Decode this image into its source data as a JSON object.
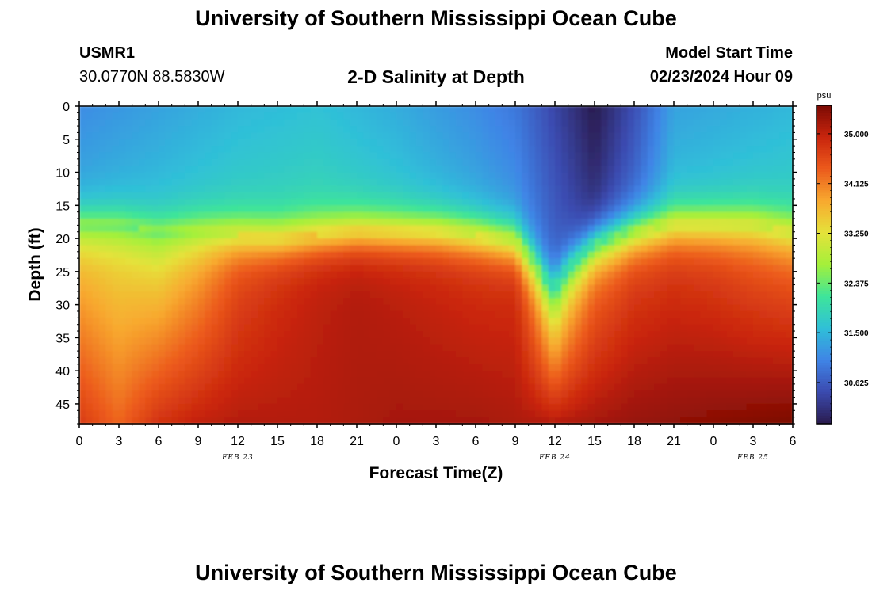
{
  "page": {
    "title": "University of Southern Mississippi Ocean Cube",
    "footer_title": "University of Southern Mississippi Ocean Cube",
    "station_id": "USMR1",
    "coordinates": "30.0770N  88.5830W",
    "subtitle": "2-D Salinity at Depth",
    "model_start_label": "Model Start Time",
    "model_start_value": "02/23/2024 Hour 09"
  },
  "chart_data": {
    "type": "heatmap",
    "title": "2-D Salinity at Depth",
    "xlabel": "Forecast Time(Z)",
    "ylabel": "Depth (ft)",
    "x_tick_labels": [
      "0",
      "3",
      "6",
      "9",
      "12",
      "15",
      "18",
      "21",
      "0",
      "3",
      "6",
      "9",
      "12",
      "15",
      "18",
      "21",
      "0",
      "3",
      "6"
    ],
    "x_hours": [
      0,
      3,
      6,
      9,
      12,
      15,
      18,
      21,
      24,
      27,
      30,
      33,
      36,
      39,
      42,
      45,
      48,
      51,
      54
    ],
    "x_range_hours": [
      0,
      54
    ],
    "date_labels": [
      {
        "text": "FEB 23",
        "hour": 12
      },
      {
        "text": "FEB 24",
        "hour": 36
      },
      {
        "text": "FEB 25",
        "hour": 51
      }
    ],
    "y_ticks": [
      0,
      5,
      10,
      15,
      20,
      25,
      30,
      35,
      40,
      45
    ],
    "y_range_ft": [
      0,
      48
    ],
    "y_inverted": true,
    "colorbar": {
      "unit": "psu",
      "ticks": [
        "35.000",
        "34.125",
        "33.250",
        "32.375",
        "31.500",
        "30.625"
      ],
      "tick_values": [
        35.0,
        34.125,
        33.25,
        32.375,
        31.5,
        30.625
      ],
      "range": [
        29.9,
        35.5
      ],
      "colors": [
        "#2a1b4e",
        "#3b4bb0",
        "#3f84e6",
        "#2fc0d8",
        "#3ee49a",
        "#a4f03a",
        "#e5e23a",
        "#f8a92f",
        "#ec5a1c",
        "#c9250d",
        "#7b0a04"
      ]
    },
    "halocline_depth_ft": [
      {
        "hour": 0,
        "depth": 18
      },
      {
        "hour": 3,
        "depth": 18
      },
      {
        "hour": 6,
        "depth": 19
      },
      {
        "hour": 9,
        "depth": 19
      },
      {
        "hour": 12,
        "depth": 19.5
      },
      {
        "hour": 15,
        "depth": 20
      },
      {
        "hour": 18,
        "depth": 19.5
      },
      {
        "hour": 21,
        "depth": 19
      },
      {
        "hour": 24,
        "depth": 19
      },
      {
        "hour": 27,
        "depth": 19
      },
      {
        "hour": 30,
        "depth": 19.5
      },
      {
        "hour": 33,
        "depth": 20.5
      },
      {
        "hour": 34.5,
        "depth": 24
      },
      {
        "hour": 35.5,
        "depth": 27
      },
      {
        "hour": 36,
        "depth": 27.5
      },
      {
        "hour": 37,
        "depth": 24.5
      },
      {
        "hour": 39,
        "depth": 21
      },
      {
        "hour": 42,
        "depth": 19
      },
      {
        "hour": 45,
        "depth": 18
      },
      {
        "hour": 48,
        "depth": 18
      },
      {
        "hour": 51,
        "depth": 18
      },
      {
        "hour": 54,
        "depth": 19
      }
    ],
    "surface_salinity_psu": [
      {
        "hour": 0,
        "value": 31.1
      },
      {
        "hour": 6,
        "value": 31.3
      },
      {
        "hour": 12,
        "value": 31.5
      },
      {
        "hour": 18,
        "value": 31.6
      },
      {
        "hour": 24,
        "value": 31.4
      },
      {
        "hour": 30,
        "value": 31.1
      },
      {
        "hour": 33,
        "value": 30.9
      },
      {
        "hour": 36,
        "value": 30.4
      },
      {
        "hour": 39,
        "value": 29.9
      },
      {
        "hour": 42,
        "value": 30.5
      },
      {
        "hour": 45,
        "value": 31.3
      },
      {
        "hour": 54,
        "value": 31.5
      }
    ],
    "mid_salinity_psu": [
      {
        "hour": 0,
        "value": 33.6
      },
      {
        "hour": 3,
        "value": 33.4
      },
      {
        "hour": 6,
        "value": 33.3
      },
      {
        "hour": 9,
        "value": 33.8
      },
      {
        "hour": 12,
        "value": 34.5
      },
      {
        "hour": 15,
        "value": 34.8
      },
      {
        "hour": 18,
        "value": 35.0
      },
      {
        "hour": 21,
        "value": 35.1
      },
      {
        "hour": 24,
        "value": 35.0
      },
      {
        "hour": 27,
        "value": 34.9
      },
      {
        "hour": 30,
        "value": 34.8
      },
      {
        "hour": 33,
        "value": 34.8
      },
      {
        "hour": 36,
        "value": 33.2
      },
      {
        "hour": 39,
        "value": 34.2
      },
      {
        "hour": 42,
        "value": 34.6
      },
      {
        "hour": 45,
        "value": 34.7
      },
      {
        "hour": 48,
        "value": 34.6
      },
      {
        "hour": 51,
        "value": 34.4
      },
      {
        "hour": 54,
        "value": 34.3
      }
    ],
    "bottom_salinity_psu": [
      {
        "hour": 0,
        "value": 34.7
      },
      {
        "hour": 3,
        "value": 34.3
      },
      {
        "hour": 6,
        "value": 34.8
      },
      {
        "hour": 9,
        "value": 35.0
      },
      {
        "hour": 12,
        "value": 35.1
      },
      {
        "hour": 18,
        "value": 35.1
      },
      {
        "hour": 24,
        "value": 35.2
      },
      {
        "hour": 30,
        "value": 35.2
      },
      {
        "hour": 36,
        "value": 35.1
      },
      {
        "hour": 42,
        "value": 35.3
      },
      {
        "hour": 48,
        "value": 35.4
      },
      {
        "hour": 54,
        "value": 35.5
      }
    ]
  }
}
